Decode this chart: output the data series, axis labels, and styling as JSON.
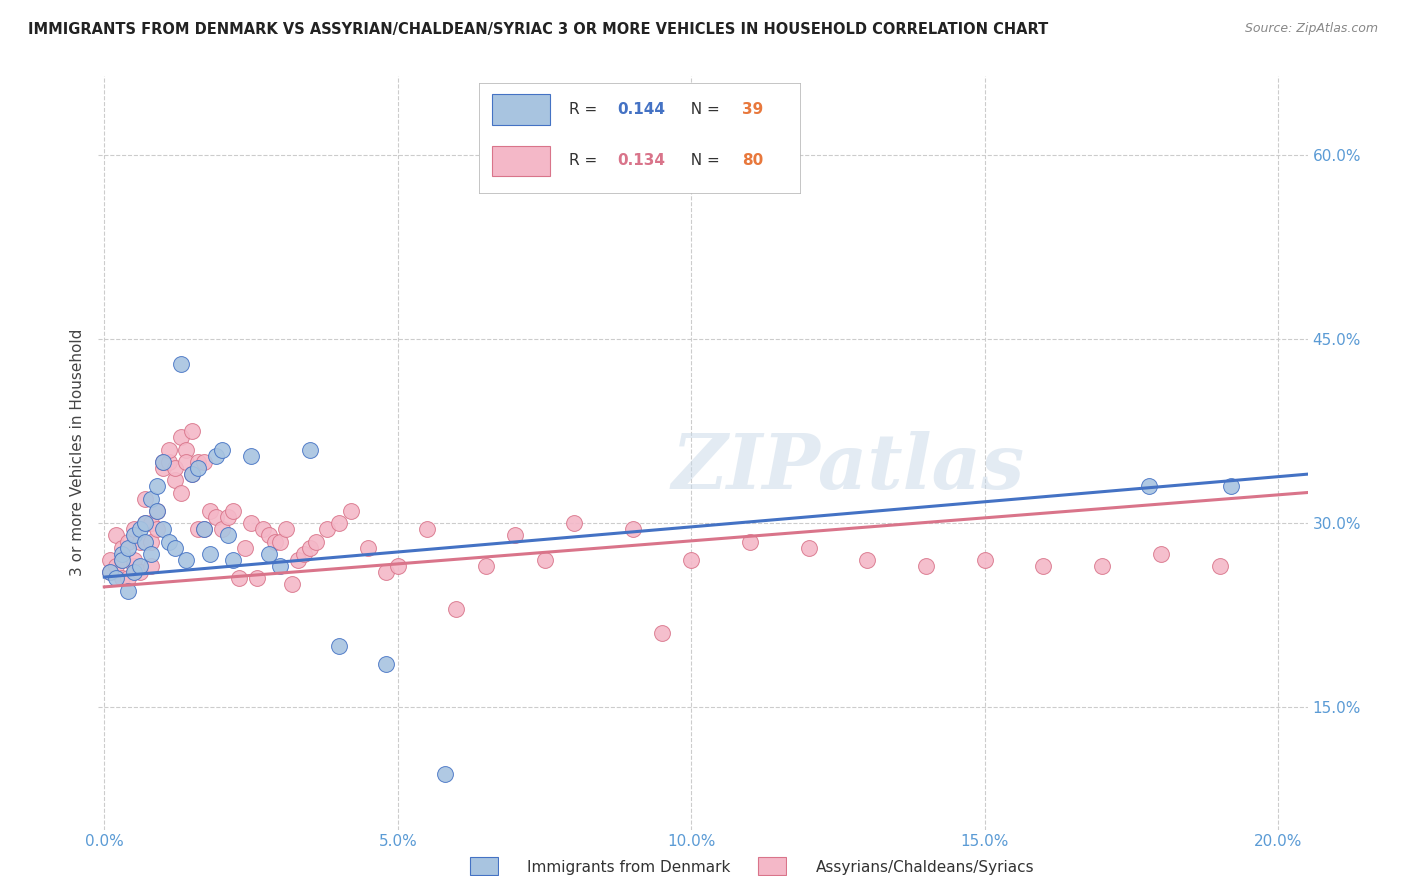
{
  "title": "IMMIGRANTS FROM DENMARK VS ASSYRIAN/CHALDEAN/SYRIAC 3 OR MORE VEHICLES IN HOUSEHOLD CORRELATION CHART",
  "source": "Source: ZipAtlas.com",
  "xlabel_ticks": [
    "0.0%",
    "5.0%",
    "10.0%",
    "15.0%",
    "20.0%"
  ],
  "xlabel_vals": [
    0.0,
    0.05,
    0.1,
    0.15,
    0.2
  ],
  "ylabel_ticks": [
    "15.0%",
    "30.0%",
    "45.0%",
    "60.0%"
  ],
  "ylabel_vals": [
    0.15,
    0.3,
    0.45,
    0.6
  ],
  "ymin": 0.05,
  "ymax": 0.665,
  "xmin": -0.001,
  "xmax": 0.205,
  "legend_label1": "Immigrants from Denmark",
  "legend_label2": "Assyrians/Chaldeans/Syriacs",
  "r1": 0.144,
  "n1": 39,
  "r2": 0.134,
  "n2": 80,
  "color1": "#a8c4e0",
  "color2": "#f4b8c8",
  "line_color1": "#4472c4",
  "line_color2": "#d9748a",
  "text_color_r": "#4472c4",
  "text_color_n": "#e8783c",
  "watermark": "ZIPatlas",
  "ylabel": "3 or more Vehicles in Household",
  "scatter1_x": [
    0.001,
    0.002,
    0.003,
    0.003,
    0.004,
    0.004,
    0.005,
    0.005,
    0.006,
    0.006,
    0.007,
    0.007,
    0.008,
    0.008,
    0.009,
    0.009,
    0.01,
    0.01,
    0.011,
    0.012,
    0.013,
    0.014,
    0.015,
    0.016,
    0.017,
    0.018,
    0.019,
    0.02,
    0.021,
    0.022,
    0.025,
    0.028,
    0.03,
    0.035,
    0.04,
    0.048,
    0.058,
    0.178,
    0.192
  ],
  "scatter1_y": [
    0.26,
    0.255,
    0.275,
    0.27,
    0.28,
    0.245,
    0.26,
    0.29,
    0.295,
    0.265,
    0.3,
    0.285,
    0.32,
    0.275,
    0.31,
    0.33,
    0.295,
    0.35,
    0.285,
    0.28,
    0.43,
    0.27,
    0.34,
    0.345,
    0.295,
    0.275,
    0.355,
    0.36,
    0.29,
    0.27,
    0.355,
    0.275,
    0.265,
    0.36,
    0.2,
    0.185,
    0.095,
    0.33,
    0.33
  ],
  "scatter2_x": [
    0.001,
    0.001,
    0.002,
    0.002,
    0.003,
    0.003,
    0.003,
    0.004,
    0.004,
    0.005,
    0.005,
    0.005,
    0.006,
    0.006,
    0.007,
    0.007,
    0.008,
    0.008,
    0.008,
    0.009,
    0.009,
    0.01,
    0.01,
    0.011,
    0.011,
    0.012,
    0.012,
    0.013,
    0.013,
    0.014,
    0.014,
    0.015,
    0.015,
    0.016,
    0.016,
    0.017,
    0.017,
    0.018,
    0.019,
    0.02,
    0.021,
    0.022,
    0.023,
    0.024,
    0.025,
    0.026,
    0.027,
    0.028,
    0.029,
    0.03,
    0.031,
    0.032,
    0.033,
    0.034,
    0.035,
    0.036,
    0.038,
    0.04,
    0.042,
    0.045,
    0.048,
    0.05,
    0.055,
    0.06,
    0.065,
    0.07,
    0.075,
    0.08,
    0.09,
    0.095,
    0.1,
    0.11,
    0.12,
    0.13,
    0.14,
    0.15,
    0.16,
    0.17,
    0.18,
    0.19
  ],
  "scatter2_y": [
    0.27,
    0.26,
    0.265,
    0.29,
    0.27,
    0.255,
    0.28,
    0.255,
    0.285,
    0.265,
    0.27,
    0.295,
    0.26,
    0.285,
    0.3,
    0.32,
    0.285,
    0.265,
    0.3,
    0.31,
    0.295,
    0.345,
    0.35,
    0.35,
    0.36,
    0.335,
    0.345,
    0.37,
    0.325,
    0.36,
    0.35,
    0.34,
    0.375,
    0.35,
    0.295,
    0.35,
    0.295,
    0.31,
    0.305,
    0.295,
    0.305,
    0.31,
    0.255,
    0.28,
    0.3,
    0.255,
    0.295,
    0.29,
    0.285,
    0.285,
    0.295,
    0.25,
    0.27,
    0.275,
    0.28,
    0.285,
    0.295,
    0.3,
    0.31,
    0.28,
    0.26,
    0.265,
    0.295,
    0.23,
    0.265,
    0.29,
    0.27,
    0.3,
    0.295,
    0.21,
    0.27,
    0.285,
    0.28,
    0.27,
    0.265,
    0.27,
    0.265,
    0.265,
    0.275,
    0.265
  ],
  "trendline1_x0": 0.0,
  "trendline1_y0": 0.256,
  "trendline1_x1": 0.205,
  "trendline1_y1": 0.34,
  "trendline2_x0": 0.0,
  "trendline2_y0": 0.248,
  "trendline2_x1": 0.205,
  "trendline2_y1": 0.325
}
